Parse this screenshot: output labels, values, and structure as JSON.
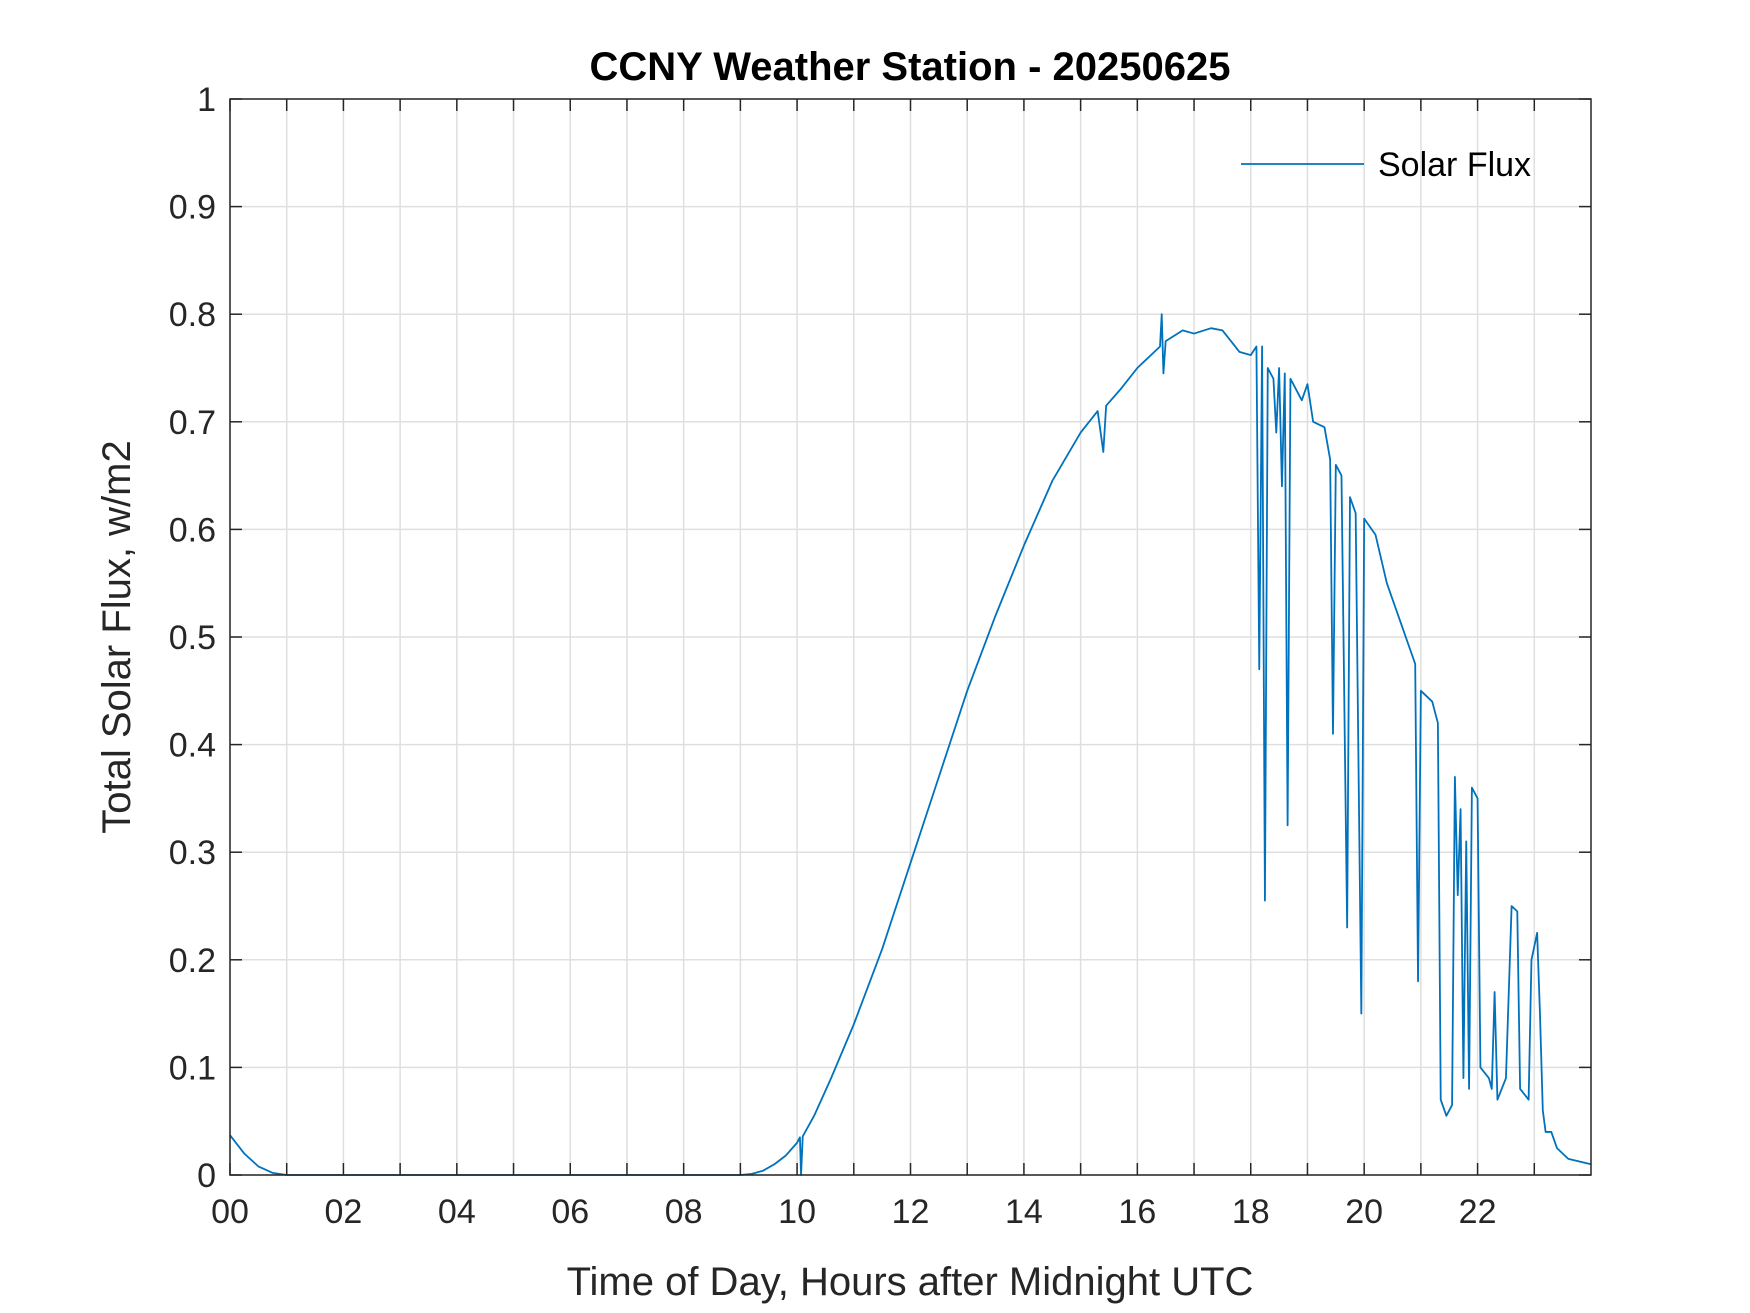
{
  "chart_data": {
    "type": "line",
    "title": "CCNY Weather Station - 20250625",
    "x_label": "Time of Day, Hours after Midnight UTC",
    "y_label": "Total Solar Flux, w/m2",
    "x": [
      0,
      0.25,
      0.5,
      0.75,
      1,
      3,
      5,
      7,
      9,
      9.2,
      9.4,
      9.6,
      9.8,
      10,
      10.05,
      10.07,
      10.1,
      10.3,
      10.6,
      11,
      11.5,
      12,
      12.5,
      13,
      13.5,
      14,
      14.5,
      15,
      15.3,
      15.4,
      15.45,
      15.7,
      16,
      16.3,
      16.4,
      16.43,
      16.46,
      16.5,
      16.8,
      17,
      17.3,
      17.5,
      17.8,
      18,
      18.1,
      18.15,
      18.2,
      18.25,
      18.3,
      18.4,
      18.45,
      18.5,
      18.55,
      18.6,
      18.65,
      18.7,
      18.9,
      19,
      19.1,
      19.3,
      19.4,
      19.45,
      19.5,
      19.6,
      19.7,
      19.75,
      19.85,
      19.95,
      20,
      20.2,
      20.4,
      20.6,
      20.8,
      20.9,
      20.95,
      21,
      21.2,
      21.3,
      21.35,
      21.45,
      21.55,
      21.6,
      21.65,
      21.7,
      21.75,
      21.8,
      21.85,
      21.9,
      22,
      22.05,
      22.2,
      22.25,
      22.3,
      22.35,
      22.5,
      22.6,
      22.7,
      22.75,
      22.9,
      22.95,
      23.05,
      23.1,
      23.15,
      23.2,
      23.3,
      23.4,
      23.6,
      24
    ],
    "series": [
      {
        "name": "Solar Flux",
        "color": "#0072bd",
        "values": [
          0.037,
          0.02,
          0.008,
          0.002,
          0,
          0,
          0,
          0,
          0,
          0.001,
          0.004,
          0.01,
          0.018,
          0.03,
          0.035,
          0,
          0.036,
          0.055,
          0.09,
          0.14,
          0.21,
          0.29,
          0.37,
          0.45,
          0.52,
          0.585,
          0.645,
          0.69,
          0.71,
          0.672,
          0.715,
          0.73,
          0.75,
          0.765,
          0.77,
          0.8,
          0.745,
          0.775,
          0.785,
          0.782,
          0.787,
          0.785,
          0.765,
          0.762,
          0.77,
          0.47,
          0.77,
          0.255,
          0.75,
          0.74,
          0.69,
          0.75,
          0.64,
          0.745,
          0.325,
          0.74,
          0.72,
          0.735,
          0.7,
          0.695,
          0.665,
          0.41,
          0.66,
          0.65,
          0.23,
          0.63,
          0.615,
          0.15,
          0.61,
          0.595,
          0.55,
          0.52,
          0.49,
          0.475,
          0.18,
          0.45,
          0.44,
          0.42,
          0.07,
          0.055,
          0.065,
          0.37,
          0.26,
          0.34,
          0.09,
          0.31,
          0.08,
          0.36,
          0.35,
          0.1,
          0.09,
          0.08,
          0.17,
          0.07,
          0.09,
          0.25,
          0.245,
          0.08,
          0.07,
          0.2,
          0.225,
          0.15,
          0.06,
          0.04,
          0.04,
          0.025,
          0.015,
          0.01
        ]
      }
    ],
    "xlim": [
      0,
      24
    ],
    "xticks": [
      {
        "value": 0,
        "label": "00"
      },
      {
        "value": 2,
        "label": "02"
      },
      {
        "value": 4,
        "label": "04"
      },
      {
        "value": 6,
        "label": "06"
      },
      {
        "value": 8,
        "label": "08"
      },
      {
        "value": 10,
        "label": "10"
      },
      {
        "value": 12,
        "label": "12"
      },
      {
        "value": 14,
        "label": "14"
      },
      {
        "value": 16,
        "label": "16"
      },
      {
        "value": 18,
        "label": "18"
      },
      {
        "value": 20,
        "label": "20"
      },
      {
        "value": 22,
        "label": "22"
      }
    ],
    "xminorticks": [
      1,
      3,
      5,
      7,
      9,
      11,
      13,
      15,
      17,
      19,
      21,
      23
    ],
    "ylim": [
      0,
      1
    ],
    "yticks": [
      0,
      0.1,
      0.2,
      0.3,
      0.4,
      0.5,
      0.6,
      0.7,
      0.8,
      0.9,
      1
    ],
    "grid": true,
    "legend": "top-right"
  }
}
